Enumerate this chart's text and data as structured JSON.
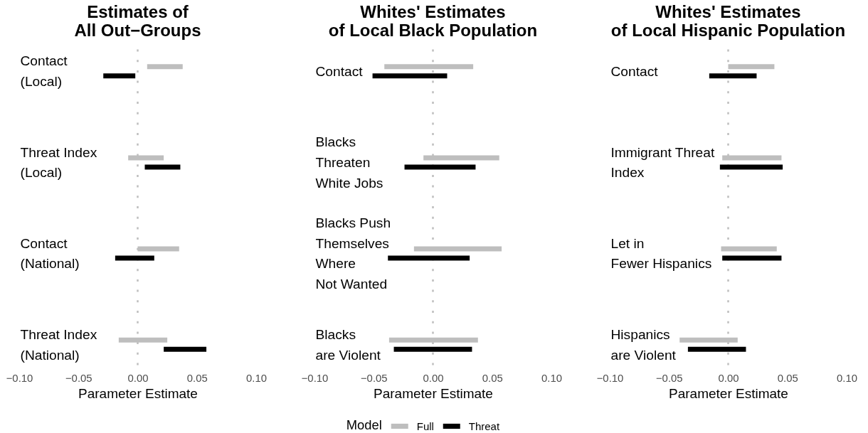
{
  "chart_data": [
    {
      "type": "bar",
      "orientation": "horizontal",
      "title": "Estimates of\nAll Out−Groups",
      "xlabel": "Parameter Estimate",
      "categories": [
        "Contact\n(Local)",
        "Threat Index\n(Local)",
        "Contact\n(National)",
        "Threat Index\n(National)"
      ],
      "series": [
        {
          "color": "#bebebe",
          "base": [
            0.008,
            -0.008,
            0.0,
            -0.016
          ],
          "values": [
            0.03,
            0.03,
            0.035,
            0.041
          ]
        },
        {
          "color": "#000000",
          "base": [
            -0.029,
            0.006,
            -0.019,
            0.022
          ],
          "values": [
            0.027,
            0.03,
            0.033,
            0.036
          ]
        }
      ],
      "xlim": [
        -0.1,
        0.1
      ],
      "xticks": [
        {
          "value": -0.1,
          "label": "−0.10"
        },
        {
          "value": -0.05,
          "label": "−0.05"
        },
        {
          "value": 0,
          "label": "0.00"
        },
        {
          "value": 0.05,
          "label": "0.05"
        },
        {
          "value": 0.1,
          "label": "0.10"
        }
      ],
      "ref_lines": [
        {
          "axis": "x",
          "value": 0,
          "color": "#bebebe",
          "line_style": "dotted"
        }
      ]
    },
    {
      "type": "bar",
      "orientation": "horizontal",
      "title": "Whites' Estimates\nof Local Black Population",
      "xlabel": "Parameter Estimate",
      "categories": [
        "Contact",
        "Blacks\nThreaten\nWhite Jobs",
        "Blacks Push\nThemselves\nWhere\nNot Wanted",
        "Blacks\nare Violent"
      ],
      "series": [
        {
          "name": "Full",
          "color": "#bebebe",
          "base": [
            -0.041,
            -0.008,
            -0.016,
            -0.037
          ],
          "values": [
            0.075,
            0.064,
            0.074,
            0.075
          ]
        },
        {
          "name": "Threat",
          "color": "#000000",
          "base": [
            -0.051,
            -0.024,
            -0.038,
            -0.033
          ],
          "values": [
            0.063,
            0.06,
            0.069,
            0.066
          ]
        }
      ],
      "xlim": [
        -0.1,
        0.1
      ],
      "xticks": [
        {
          "value": -0.1,
          "label": "−0.10"
        },
        {
          "value": -0.05,
          "label": "−0.05"
        },
        {
          "value": 0,
          "label": "0.00"
        },
        {
          "value": 0.05,
          "label": "0.05"
        },
        {
          "value": 0.1,
          "label": "0.10"
        }
      ],
      "ref_lines": [
        {
          "axis": "x",
          "value": 0,
          "color": "#bebebe",
          "line_style": "dotted"
        }
      ],
      "legend": "bottom",
      "legend_title": "Model"
    },
    {
      "type": "bar",
      "orientation": "horizontal",
      "title": "Whites' Estimates\nof Local Hispanic Population",
      "xlabel": "Parameter Estimate",
      "categories": [
        "Contact",
        "Immigrant Threat\nIndex",
        "Let in\nFewer Hispanics",
        "Hispanics\nare Violent"
      ],
      "series": [
        {
          "color": "#bebebe",
          "base": [
            0.0,
            -0.005,
            -0.006,
            -0.041
          ],
          "values": [
            0.039,
            0.05,
            0.047,
            0.049
          ]
        },
        {
          "color": "#000000",
          "base": [
            -0.016,
            -0.007,
            -0.005,
            -0.034
          ],
          "values": [
            0.04,
            0.053,
            0.05,
            0.049
          ]
        }
      ],
      "xlim": [
        -0.1,
        0.1
      ],
      "xticks": [
        {
          "value": -0.1,
          "label": "−0.10"
        },
        {
          "value": -0.05,
          "label": "−0.05"
        },
        {
          "value": 0,
          "label": "0.00"
        },
        {
          "value": 0.05,
          "label": "0.05"
        },
        {
          "value": 0.1,
          "label": "0.10"
        }
      ],
      "ref_lines": [
        {
          "axis": "x",
          "value": 0,
          "color": "#bebebe",
          "line_style": "dotted"
        }
      ]
    }
  ]
}
